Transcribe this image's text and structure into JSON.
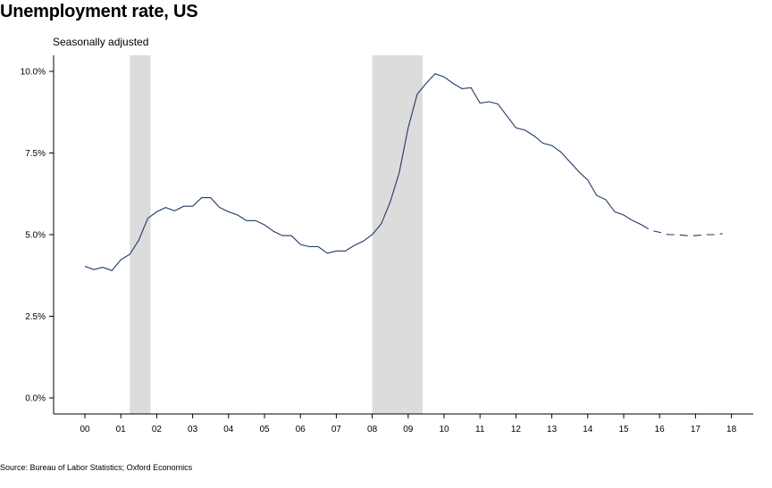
{
  "chart_data": {
    "type": "line",
    "title": "Unemployment rate, US",
    "subtitle": "Seasonally adjusted",
    "source": "Source: Bureau of Labor Statistics; Oxford Economics",
    "xlabel": "",
    "ylabel": "",
    "x_tick_labels": [
      "00",
      "01",
      "02",
      "03",
      "04",
      "05",
      "06",
      "07",
      "08",
      "09",
      "10",
      "11",
      "12",
      "13",
      "14",
      "15",
      "16",
      "17",
      "18"
    ],
    "y_tick_labels": [
      "0.0%",
      "2.5%",
      "5.0%",
      "7.5%",
      "10.0%"
    ],
    "y_ticks": [
      0,
      2.5,
      5.0,
      7.5,
      10.0
    ],
    "xlim": [
      1999.6,
      2018.6
    ],
    "ylim": [
      -0.5,
      10.5
    ],
    "grid": false,
    "recessions": [
      [
        2001.25,
        2001.83
      ],
      [
        2008.0,
        2009.4
      ]
    ],
    "line_color": "#1f3864",
    "recession_color": "#dcdcdc",
    "series": [
      {
        "style": "solid",
        "points": [
          [
            2000.0,
            4.03
          ],
          [
            2000.25,
            3.93
          ],
          [
            2000.5,
            4.0
          ],
          [
            2000.75,
            3.9
          ],
          [
            2001.0,
            4.23
          ],
          [
            2001.25,
            4.4
          ],
          [
            2001.5,
            4.83
          ],
          [
            2001.75,
            5.5
          ],
          [
            2002.0,
            5.7
          ],
          [
            2002.25,
            5.83
          ],
          [
            2002.5,
            5.73
          ],
          [
            2002.75,
            5.87
          ],
          [
            2003.0,
            5.87
          ],
          [
            2003.25,
            6.13
          ],
          [
            2003.5,
            6.13
          ],
          [
            2003.75,
            5.83
          ],
          [
            2004.0,
            5.7
          ],
          [
            2004.25,
            5.6
          ],
          [
            2004.5,
            5.43
          ],
          [
            2004.75,
            5.43
          ],
          [
            2005.0,
            5.3
          ],
          [
            2005.25,
            5.1
          ],
          [
            2005.5,
            4.97
          ],
          [
            2005.75,
            4.97
          ],
          [
            2006.0,
            4.7
          ],
          [
            2006.25,
            4.63
          ],
          [
            2006.5,
            4.63
          ],
          [
            2006.75,
            4.43
          ],
          [
            2007.0,
            4.5
          ],
          [
            2007.25,
            4.5
          ],
          [
            2007.5,
            4.67
          ],
          [
            2007.75,
            4.8
          ],
          [
            2008.0,
            5.0
          ],
          [
            2008.25,
            5.33
          ],
          [
            2008.5,
            6.0
          ],
          [
            2008.75,
            6.9
          ],
          [
            2009.0,
            8.27
          ],
          [
            2009.25,
            9.3
          ],
          [
            2009.5,
            9.63
          ],
          [
            2009.75,
            9.93
          ],
          [
            2010.0,
            9.83
          ],
          [
            2010.25,
            9.63
          ],
          [
            2010.5,
            9.47
          ],
          [
            2010.75,
            9.5
          ],
          [
            2011.0,
            9.03
          ],
          [
            2011.25,
            9.07
          ],
          [
            2011.5,
            9.0
          ],
          [
            2011.75,
            8.63
          ],
          [
            2012.0,
            8.27
          ],
          [
            2012.25,
            8.2
          ],
          [
            2012.5,
            8.03
          ],
          [
            2012.75,
            7.8
          ],
          [
            2013.0,
            7.73
          ],
          [
            2013.25,
            7.53
          ],
          [
            2013.5,
            7.23
          ],
          [
            2013.75,
            6.93
          ],
          [
            2014.0,
            6.67
          ],
          [
            2014.25,
            6.2
          ],
          [
            2014.5,
            6.07
          ],
          [
            2014.75,
            5.7
          ],
          [
            2015.0,
            5.6
          ],
          [
            2015.25,
            5.43
          ],
          [
            2015.5,
            5.3
          ]
        ]
      },
      {
        "style": "dashed",
        "points": [
          [
            2015.5,
            5.3
          ],
          [
            2015.75,
            5.13
          ],
          [
            2016.0,
            5.07
          ],
          [
            2016.25,
            5.0
          ],
          [
            2016.5,
            5.0
          ],
          [
            2016.75,
            4.97
          ],
          [
            2017.0,
            4.97
          ],
          [
            2017.25,
            5.0
          ],
          [
            2017.5,
            5.0
          ],
          [
            2017.75,
            5.03
          ]
        ]
      }
    ]
  }
}
